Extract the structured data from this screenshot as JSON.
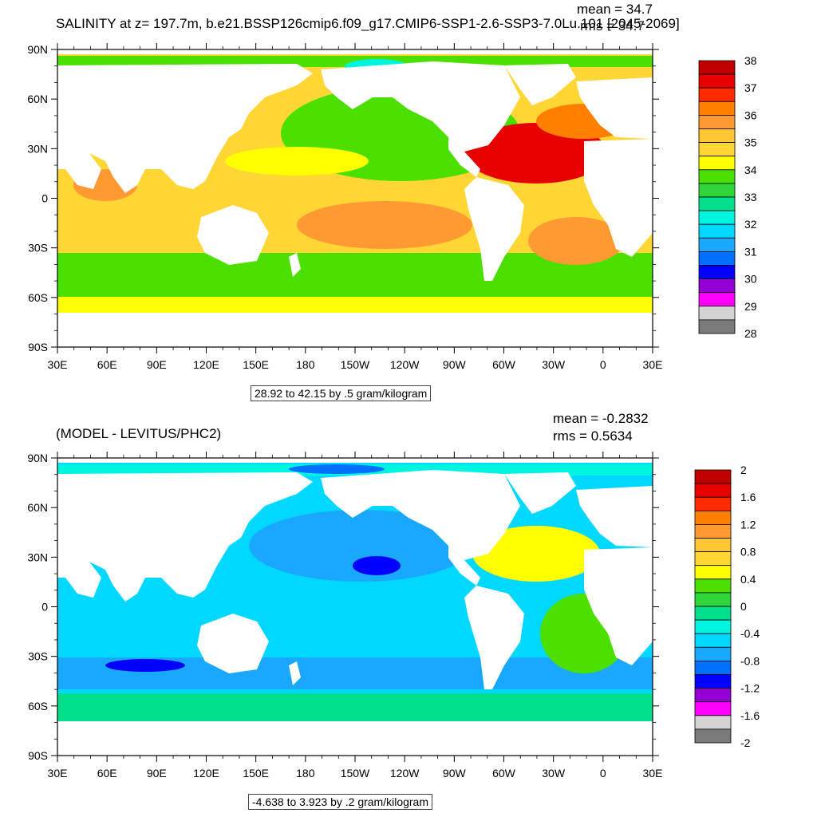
{
  "panel_top": {
    "title": "SALINITY at z= 197.7m, b.e21.BSSP126cmip6.f09_g17.CMIP6-SSP1-2.6-SSP3-7.0Lu.101 [2045-2069]",
    "mean_label": "mean = 34.7",
    "rms_label": "rms = 34.7",
    "info_box": "28.92 to 42.15 by .5 gram/kilogram",
    "colorbar_labels": [
      "38",
      "37",
      "36",
      "35",
      "34",
      "33",
      "32",
      "31",
      "30",
      "29",
      "28"
    ],
    "colorbar_colors": [
      "#c00000",
      "#e60000",
      "#ff2a00",
      "#ff8000",
      "#ff9a33",
      "#ffc633",
      "#ffd633",
      "#ffff00",
      "#4ce000",
      "#2fd53b",
      "#00e08a",
      "#00f5e0",
      "#00d8ff",
      "#1aa8ff",
      "#0070ff",
      "#0000ff",
      "#9400d3",
      "#ff00ff",
      "#d4d4d4",
      "#7a7a7a"
    ]
  },
  "panel_bottom": {
    "title": "(MODEL - LEVITUS/PHC2)",
    "mean_label": "mean = -0.2832",
    "rms_label": "rms = 0.5634",
    "info_box": "-4.638 to 3.923 by .2 gram/kilogram",
    "colorbar_labels": [
      "2",
      "1.6",
      "1.2",
      "0.8",
      "0.4",
      "0",
      "-0.4",
      "-0.8",
      "-1.2",
      "-1.6",
      "-2"
    ],
    "colorbar_colors": [
      "#c00000",
      "#e60000",
      "#ff2a00",
      "#ff8000",
      "#ff9a33",
      "#ffc633",
      "#ffd633",
      "#ffff00",
      "#4ce000",
      "#2fd53b",
      "#00e08a",
      "#00f5e0",
      "#00d8ff",
      "#1aa8ff",
      "#0070ff",
      "#0000ff",
      "#9400d3",
      "#ff00ff",
      "#d4d4d4",
      "#7a7a7a"
    ]
  },
  "axes": {
    "lat_labels": [
      "90N",
      "60N",
      "30N",
      "0",
      "30S",
      "60S",
      "90S"
    ],
    "lon_labels": [
      "30E",
      "60E",
      "90E",
      "120E",
      "150E",
      "180",
      "150W",
      "120W",
      "90W",
      "60W",
      "30W",
      "0",
      "30E"
    ]
  },
  "land_color": "#ffffff"
}
